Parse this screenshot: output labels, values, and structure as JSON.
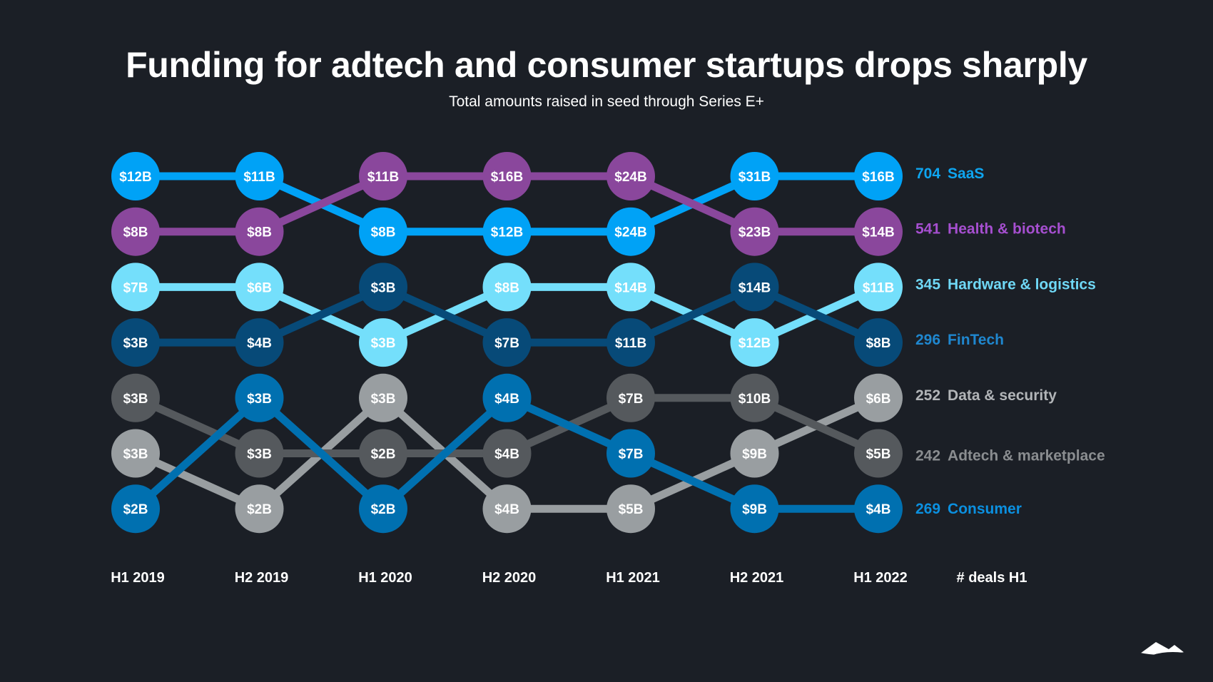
{
  "chart_data": {
    "type": "bump",
    "title": "Funding for adtech and consumer startups drops sharply",
    "subtitle": "Total amounts raised in seed through Series E+",
    "periods": [
      "H1 2019",
      "H2 2019",
      "H1 2020",
      "H2 2020",
      "H1 2021",
      "H2 2021",
      "H1 2022"
    ],
    "deals_header": "# deals H1",
    "series": [
      {
        "name": "SaaS",
        "deals": "704",
        "color": "#00a2f6",
        "label_color": "#0ea5f0",
        "ranks": [
          1,
          1,
          2,
          2,
          2,
          1,
          1
        ],
        "values": [
          "$12B",
          "$11B",
          "$8B",
          "$12B",
          "$24B",
          "$31B",
          "$16B"
        ]
      },
      {
        "name": "Health & biotech",
        "deals": "541",
        "color": "#8a479c",
        "label_color": "#a64fd0",
        "ranks": [
          2,
          2,
          1,
          1,
          1,
          2,
          2
        ],
        "values": [
          "$8B",
          "$8B",
          "$11B",
          "$16B",
          "$24B",
          "$23B",
          "$14B"
        ]
      },
      {
        "name": "Hardware & logistics",
        "deals": "345",
        "color": "#74dffb",
        "label_color": "#6fd8f6",
        "ranks": [
          3,
          3,
          4,
          3,
          3,
          4,
          3
        ],
        "values": [
          "$7B",
          "$6B",
          "$3B",
          "$8B",
          "$14B",
          "$12B",
          "$11B"
        ]
      },
      {
        "name": "FinTech",
        "deals": "296",
        "color": "#074a78",
        "label_color": "#1f87cf",
        "ranks": [
          4,
          4,
          3,
          4,
          4,
          3,
          4
        ],
        "values": [
          "$3B",
          "$4B",
          "$3B",
          "$7B",
          "$11B",
          "$14B",
          "$8B"
        ]
      },
      {
        "name": "Data & security",
        "deals": "252",
        "color": "#999ea1",
        "label_color": "#b2b5b8",
        "ranks": [
          6,
          7,
          5,
          7,
          7,
          6,
          5
        ],
        "values": [
          "$3B",
          "$2B",
          "$3B",
          "$4B",
          "$5B",
          "$9B",
          "$6B"
        ]
      },
      {
        "name": "Adtech & marketplace",
        "deals": "242",
        "color": "#55595d",
        "label_color": "#8a8d90",
        "ranks": [
          5,
          6,
          6,
          6,
          5,
          5,
          6
        ],
        "values": [
          "$3B",
          "$3B",
          "$2B",
          "$4B",
          "$7B",
          "$10B",
          "$5B"
        ]
      },
      {
        "name": "Consumer",
        "deals": "269",
        "color": "#0070b0",
        "label_color": "#0b90e0",
        "ranks": [
          7,
          5,
          7,
          5,
          6,
          7,
          7
        ],
        "values": [
          "$2B",
          "$3B",
          "$2B",
          "$4B",
          "$7B",
          "$9B",
          "$4B"
        ]
      }
    ]
  },
  "background": "#1b1f26"
}
